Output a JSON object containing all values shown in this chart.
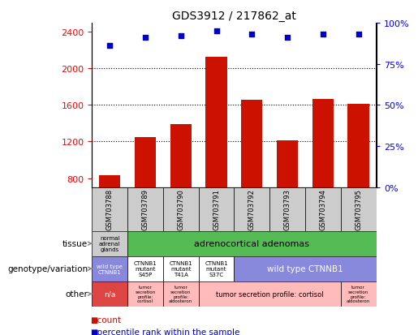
{
  "title": "GDS3912 / 217862_at",
  "samples": [
    "GSM703788",
    "GSM703789",
    "GSM703790",
    "GSM703791",
    "GSM703792",
    "GSM703793",
    "GSM703794",
    "GSM703795"
  ],
  "counts": [
    830,
    1250,
    1390,
    2130,
    1660,
    1215,
    1670,
    1615
  ],
  "percentiles": [
    86,
    91,
    92,
    95,
    93,
    91,
    93,
    93
  ],
  "ylim_left": [
    700,
    2500
  ],
  "ylim_right": [
    0,
    100
  ],
  "yticks_left": [
    800,
    1200,
    1600,
    2000,
    2400
  ],
  "yticks_right": [
    0,
    25,
    50,
    75,
    100
  ],
  "bar_color": "#cc1100",
  "dot_color": "#0000cc",
  "tissue_normal_color": "#cccccc",
  "tissue_adrenal_color": "#55bb55",
  "geno_wt_color": "#8888dd",
  "geno_mut_color": "#ffffff",
  "other_na_color": "#dd4444",
  "other_pink_color": "#ffbbbb",
  "sample_bg_color": "#cccccc",
  "row_labels": [
    "tissue",
    "genotype/variation",
    "other"
  ],
  "legend_count_color": "#cc1100",
  "legend_pct_color": "#0000cc"
}
